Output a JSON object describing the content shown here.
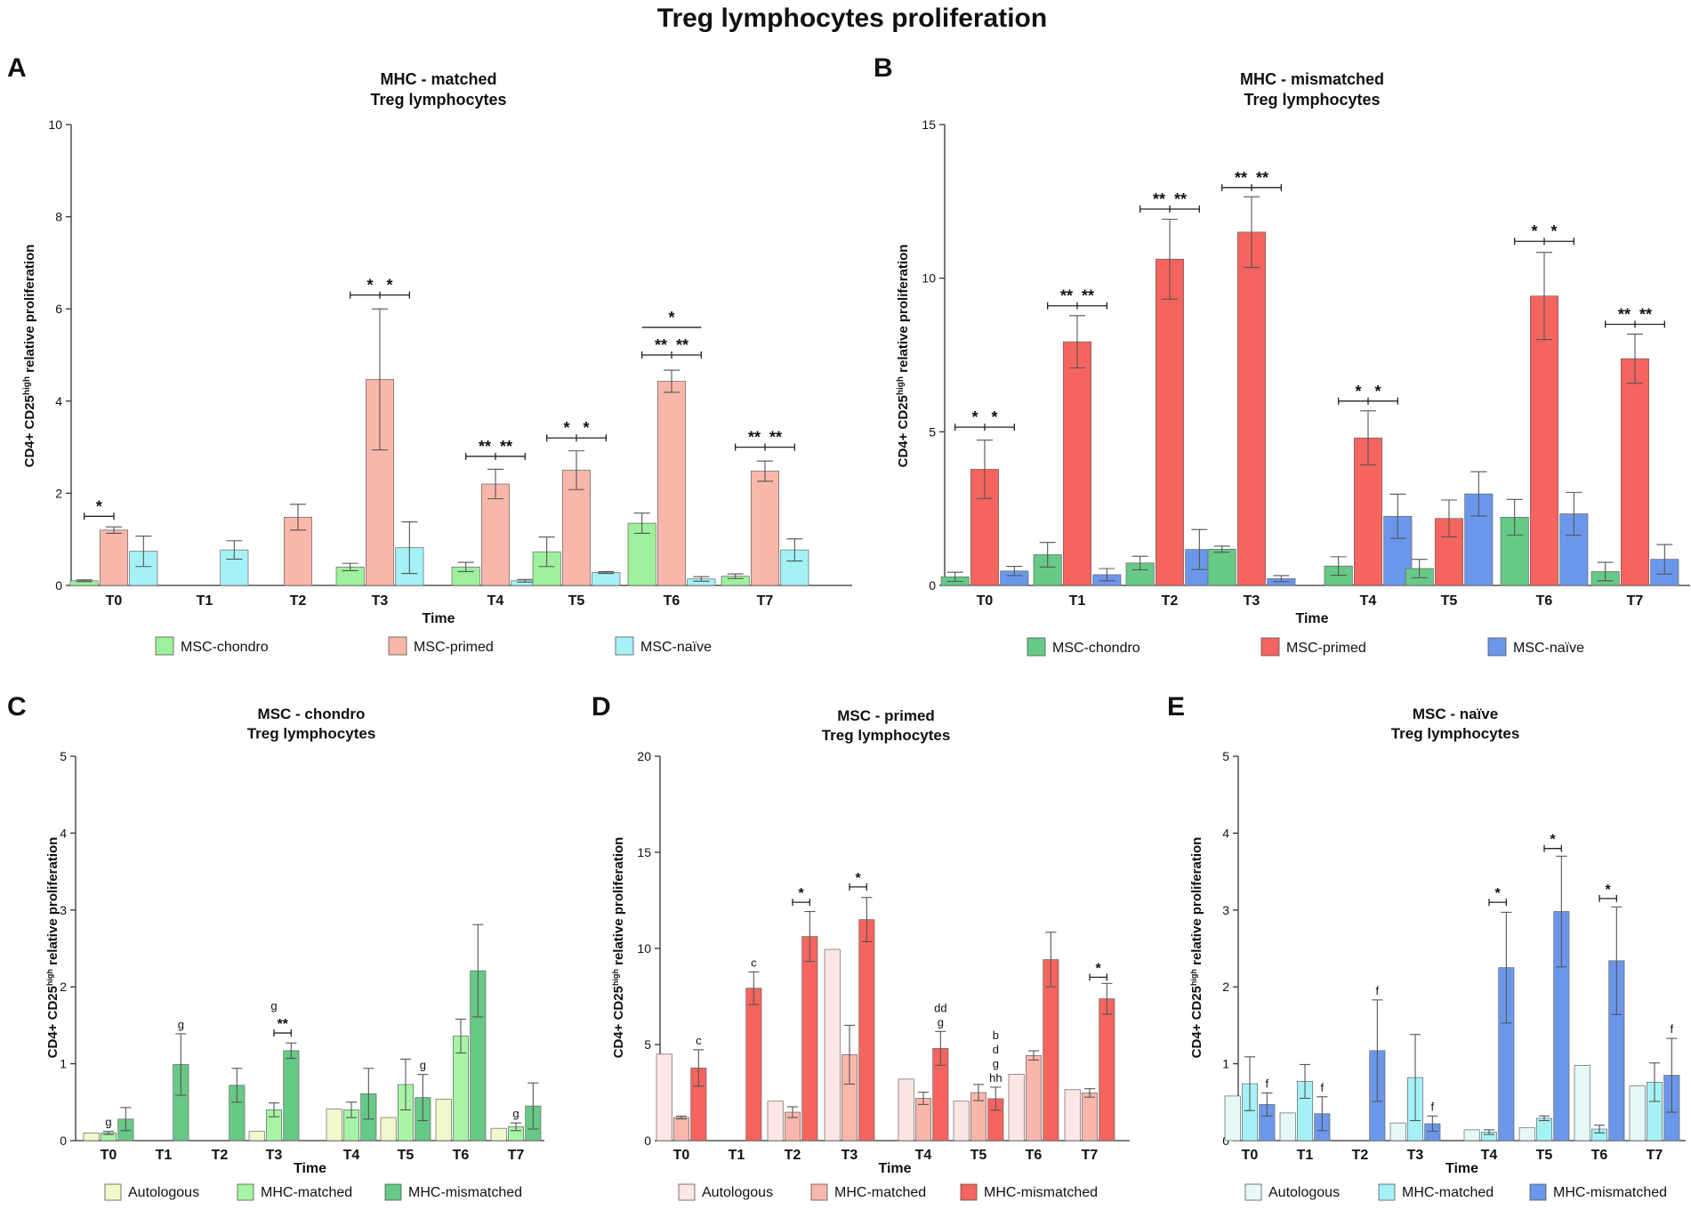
{
  "figure_title": "Treg lymphocytes proliferation",
  "chart_data": [
    {
      "panel": "A",
      "type": "bar",
      "title": "MHC - matched",
      "subtitle": "Treg lymphocytes",
      "xlabel": "Time",
      "ylabel": "CD4+ CD25high relative proliferation",
      "ylim": [
        0,
        10
      ],
      "yticks": [
        0,
        2,
        4,
        6,
        8,
        10
      ],
      "categories": [
        "T0",
        "T1",
        "T2",
        "T3",
        "T4",
        "T5",
        "T6",
        "T7"
      ],
      "series": [
        {
          "name": "MSC-chondro",
          "color": "#9ff09c",
          "values": [
            0.1,
            null,
            null,
            0.4,
            0.4,
            0.73,
            1.35,
            0.2
          ],
          "errors": [
            0.02,
            null,
            null,
            0.08,
            0.1,
            0.32,
            0.22,
            0.05
          ]
        },
        {
          "name": "MSC-primed",
          "color": "#f8b7aa",
          "values": [
            1.2,
            null,
            1.48,
            4.47,
            2.2,
            2.5,
            4.43,
            2.48
          ],
          "errors": [
            0.07,
            null,
            0.28,
            1.53,
            0.32,
            0.42,
            0.24,
            0.22
          ]
        },
        {
          "name": "MSC-naïve",
          "color": "#a4f2f6",
          "values": [
            0.74,
            0.77,
            null,
            0.82,
            0.1,
            0.28,
            0.14,
            0.77
          ],
          "errors": [
            0.33,
            0.2,
            null,
            0.56,
            0.03,
            0.02,
            0.05,
            0.24
          ]
        }
      ],
      "significance": [
        {
          "category": "T0",
          "from": 0,
          "to": 1,
          "label": "*",
          "y": 1.5
        },
        {
          "category": "T3",
          "from": 0,
          "to": 2,
          "label": "*   *",
          "y": 6.3
        },
        {
          "category": "T4",
          "from": 0,
          "to": 2,
          "label": "**  **",
          "y": 2.8
        },
        {
          "category": "T5",
          "from": 0,
          "to": 2,
          "label": "*   *",
          "y": 3.2
        },
        {
          "category": "T6",
          "from": 0,
          "to": 2,
          "label": "**  **",
          "y": 5.0
        },
        {
          "category": "T6",
          "from": 0,
          "to": 2,
          "label": "*",
          "y": 5.6,
          "plain": true
        },
        {
          "category": "T7",
          "from": 0,
          "to": 2,
          "label": "**  **",
          "y": 3.0
        }
      ],
      "legend": [
        "MSC-chondro",
        "MSC-primed",
        "MSC-naïve"
      ]
    },
    {
      "panel": "B",
      "type": "bar",
      "title": "MHC - mismatched",
      "subtitle": "Treg lymphocytes",
      "xlabel": "Time",
      "ylabel": "CD4+ CD25high relative proliferation",
      "ylim": [
        0,
        15
      ],
      "yticks": [
        0,
        5,
        10,
        15
      ],
      "categories": [
        "T0",
        "T1",
        "T2",
        "T3",
        "T4",
        "T5",
        "T6",
        "T7"
      ],
      "series": [
        {
          "name": "MSC-chondro",
          "color": "#66c986",
          "values": [
            0.28,
            1.0,
            0.73,
            1.18,
            0.63,
            0.55,
            2.22,
            0.45
          ],
          "errors": [
            0.15,
            0.4,
            0.22,
            0.1,
            0.3,
            0.3,
            0.58,
            0.3
          ]
        },
        {
          "name": "MSC-primed",
          "color": "#f5645f",
          "values": [
            3.78,
            7.93,
            10.62,
            11.5,
            4.8,
            2.18,
            9.42,
            7.38
          ],
          "errors": [
            0.95,
            0.85,
            1.3,
            1.15,
            0.88,
            0.6,
            1.42,
            0.8
          ]
        },
        {
          "name": "MSC-naïve",
          "color": "#6b97eb",
          "values": [
            0.47,
            0.35,
            1.17,
            0.22,
            2.25,
            2.98,
            2.33,
            0.85
          ],
          "errors": [
            0.15,
            0.2,
            0.65,
            0.1,
            0.72,
            0.72,
            0.7,
            0.48
          ]
        }
      ],
      "significance": [
        {
          "category": "T0",
          "from": 0,
          "to": 2,
          "label": "*   *",
          "y": 5.15
        },
        {
          "category": "T1",
          "from": 0,
          "to": 2,
          "label": "**  **",
          "y": 9.1
        },
        {
          "category": "T2",
          "from": 0,
          "to": 2,
          "label": "**  **",
          "y": 12.25
        },
        {
          "category": "T3",
          "from": 0,
          "to": 2,
          "label": "**  **",
          "y": 12.95
        },
        {
          "category": "T4",
          "from": 0,
          "to": 2,
          "label": "*   *",
          "y": 6.0
        },
        {
          "category": "T6",
          "from": 0,
          "to": 2,
          "label": "*   *",
          "y": 11.2
        },
        {
          "category": "T7",
          "from": 0,
          "to": 2,
          "label": "**  **",
          "y": 8.5
        }
      ],
      "legend": [
        "MSC-chondro",
        "MSC-primed",
        "MSC-naïve"
      ]
    },
    {
      "panel": "C",
      "type": "bar",
      "title": "MSC - chondro",
      "subtitle": "Treg lymphocytes",
      "xlabel": "Time",
      "ylabel": "CD4+ CD25high relative proliferation",
      "ylim": [
        0,
        5
      ],
      "yticks": [
        0,
        1,
        2,
        3,
        4,
        5
      ],
      "categories": [
        "T0",
        "T1",
        "T2",
        "T3",
        "T4",
        "T5",
        "T6",
        "T7"
      ],
      "series": [
        {
          "name": "Autologous",
          "color": "#f3f7cc",
          "values": [
            0.1,
            null,
            null,
            0.12,
            0.41,
            0.3,
            0.54,
            0.16
          ],
          "errors": [
            null,
            null,
            null,
            null,
            null,
            null,
            null,
            null
          ]
        },
        {
          "name": "MHC-matched",
          "color": "#a8f4a6",
          "values": [
            0.1,
            null,
            null,
            0.4,
            0.4,
            0.73,
            1.36,
            0.18
          ],
          "errors": [
            0.02,
            null,
            null,
            0.09,
            0.1,
            0.33,
            0.22,
            0.05
          ]
        },
        {
          "name": "MHC-mismatched",
          "color": "#66c986",
          "values": [
            0.28,
            0.99,
            0.72,
            1.17,
            0.61,
            0.56,
            2.21,
            0.45
          ],
          "errors": [
            0.15,
            0.4,
            0.22,
            0.1,
            0.33,
            0.3,
            0.6,
            0.3
          ]
        }
      ],
      "significance": [
        {
          "category": "T3",
          "from": 1,
          "to": 2,
          "label": "**",
          "y": 1.4
        }
      ],
      "annotations": [
        {
          "category": "T0",
          "series": 1,
          "text": "g"
        },
        {
          "category": "T1",
          "series": 2,
          "text": "g"
        },
        {
          "category": "T3",
          "series": 1,
          "text": "g"
        },
        {
          "category": "T5",
          "series": 2,
          "text": "g"
        },
        {
          "category": "T7",
          "series": 1,
          "text": "g"
        }
      ],
      "legend": [
        "Autologous",
        "MHC-matched",
        "MHC-mismatched"
      ]
    },
    {
      "panel": "D",
      "type": "bar",
      "title": "MSC - primed",
      "subtitle": "Treg lymphocytes",
      "xlabel": "Time",
      "ylabel": "CD4+ CD25high relative proliferation",
      "ylim": [
        0,
        20
      ],
      "yticks": [
        0,
        5,
        10,
        15,
        20
      ],
      "categories": [
        "T0",
        "T1",
        "T2",
        "T3",
        "T4",
        "T5",
        "T6",
        "T7"
      ],
      "series": [
        {
          "name": "Autologous",
          "color": "#fde6e3",
          "values": [
            4.5,
            null,
            2.05,
            9.95,
            3.2,
            2.05,
            3.45,
            2.65
          ],
          "errors": [
            null,
            null,
            null,
            null,
            null,
            null,
            null,
            null
          ]
        },
        {
          "name": "MHC-matched",
          "color": "#f8b7aa",
          "values": [
            1.2,
            null,
            1.48,
            4.47,
            2.2,
            2.5,
            4.43,
            2.48
          ],
          "errors": [
            0.07,
            null,
            0.28,
            1.53,
            0.32,
            0.42,
            0.24,
            0.22
          ]
        },
        {
          "name": "MHC-mismatched",
          "color": "#f5645f",
          "values": [
            3.78,
            7.93,
            10.62,
            11.5,
            4.8,
            2.18,
            9.42,
            7.38
          ],
          "errors": [
            0.95,
            0.85,
            1.3,
            1.15,
            0.88,
            0.6,
            1.42,
            0.8
          ]
        }
      ],
      "significance": [
        {
          "category": "T2",
          "from": 1,
          "to": 2,
          "label": "*",
          "y": 12.4
        },
        {
          "category": "T3",
          "from": 1,
          "to": 2,
          "label": "*",
          "y": 13.2
        },
        {
          "category": "T7",
          "from": 1,
          "to": 2,
          "label": "*",
          "y": 8.5
        }
      ],
      "annotations": [
        {
          "category": "T0",
          "series": 2,
          "text": "c"
        },
        {
          "category": "T1",
          "series": 2,
          "text": "c"
        },
        {
          "category": "T4",
          "series": 2,
          "text": "dd\ng"
        },
        {
          "category": "T5",
          "series": 2,
          "text": "b\nd\ng\nhh"
        }
      ],
      "legend": [
        "Autologous",
        "MHC-matched",
        "MHC-mismatched"
      ]
    },
    {
      "panel": "E",
      "type": "bar",
      "title": "MSC - naïve",
      "subtitle": "Treg lymphocytes",
      "xlabel": "Time",
      "ylabel": "CD4+ CD25high relative proliferation",
      "ylim": [
        0,
        5
      ],
      "yticks": [
        0,
        1,
        2,
        3,
        4,
        5
      ],
      "categories": [
        "T0",
        "T1",
        "T2",
        "T3",
        "T4",
        "T5",
        "T6",
        "T7"
      ],
      "series": [
        {
          "name": "Autologous",
          "color": "#e6f8f8",
          "values": [
            0.58,
            0.36,
            null,
            0.23,
            0.14,
            0.17,
            0.98,
            0.71
          ],
          "errors": [
            null,
            null,
            null,
            null,
            null,
            null,
            null,
            null
          ]
        },
        {
          "name": "MHC-matched",
          "color": "#a4f2f6",
          "values": [
            0.74,
            0.77,
            null,
            0.82,
            0.11,
            0.29,
            0.15,
            0.76
          ],
          "errors": [
            0.35,
            0.22,
            null,
            0.56,
            0.03,
            0.03,
            0.05,
            0.25
          ]
        },
        {
          "name": "MHC-mismatched",
          "color": "#6b97eb",
          "values": [
            0.47,
            0.35,
            1.17,
            0.22,
            2.25,
            2.98,
            2.34,
            0.85
          ],
          "errors": [
            0.15,
            0.22,
            0.66,
            0.1,
            0.72,
            0.72,
            0.7,
            0.48
          ]
        }
      ],
      "significance": [
        {
          "category": "T4",
          "from": 1,
          "to": 2,
          "label": "*",
          "y": 3.1
        },
        {
          "category": "T5",
          "from": 1,
          "to": 2,
          "label": "*",
          "y": 3.8
        },
        {
          "category": "T6",
          "from": 1,
          "to": 2,
          "label": "*",
          "y": 3.15
        }
      ],
      "annotations": [
        {
          "category": "T0",
          "series": 2,
          "text": "f"
        },
        {
          "category": "T1",
          "series": 2,
          "text": "f"
        },
        {
          "category": "T2",
          "series": 2,
          "text": "f"
        },
        {
          "category": "T3",
          "series": 2,
          "text": "f"
        },
        {
          "category": "T7",
          "series": 2,
          "text": "f"
        }
      ],
      "legend": [
        "Autologous",
        "MHC-matched",
        "MHC-mismatched"
      ]
    }
  ]
}
